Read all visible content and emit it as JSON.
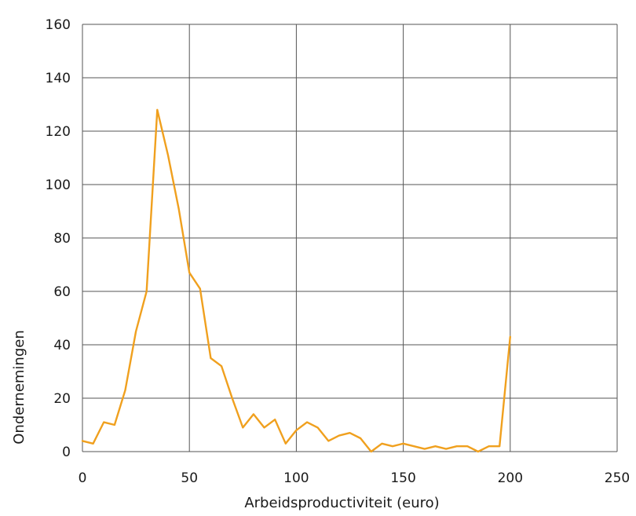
{
  "chart_data": {
    "type": "line",
    "title": "",
    "xlabel": "Arbeidsproductiviteit (euro)",
    "ylabel": "Ondernemingen",
    "xlim": [
      0,
      250
    ],
    "ylim": [
      0,
      160
    ],
    "xticks": [
      0,
      50,
      100,
      150,
      200,
      250
    ],
    "yticks": [
      0,
      20,
      40,
      60,
      80,
      100,
      120,
      140,
      160
    ],
    "x_tick_labels": [
      "0",
      "50",
      "100",
      "150",
      "200",
      "250"
    ],
    "y_tick_labels": [
      "0",
      "20",
      "40",
      "60",
      "80",
      "100",
      "120",
      "140",
      "160"
    ],
    "grid": true,
    "legend": "none",
    "series": [
      {
        "color": "#f0a01e",
        "x": [
          0,
          5,
          10,
          15,
          20,
          25,
          30,
          35,
          40,
          45,
          50,
          55,
          60,
          65,
          70,
          75,
          80,
          85,
          90,
          95,
          100,
          105,
          110,
          115,
          120,
          125,
          130,
          135,
          140,
          145,
          150,
          155,
          160,
          165,
          170,
          175,
          180,
          185,
          190,
          195,
          200
        ],
        "y": [
          4,
          3,
          11,
          10,
          23,
          45,
          60,
          128,
          111,
          91,
          67,
          61,
          35,
          32,
          20,
          9,
          14,
          9,
          12,
          3,
          8,
          11,
          9,
          4,
          6,
          7,
          5,
          0,
          3,
          2,
          3,
          2,
          1,
          2,
          1,
          2,
          2,
          0,
          2,
          2,
          43
        ]
      }
    ]
  }
}
